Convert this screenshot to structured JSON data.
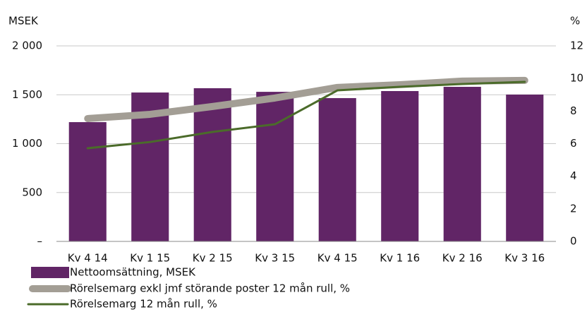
{
  "chart_data": {
    "type": "bar_line",
    "ylabel": "MSEK",
    "y2label": "%",
    "categories": [
      "Kv 4 14",
      "Kv 1 15",
      "Kv 2 15",
      "Kv 3 15",
      "Kv 4 15",
      "Kv 1 16",
      "Kv 2 16",
      "Kv 3 16"
    ],
    "series": [
      {
        "name": "Nettoomsättning, MSEK",
        "type": "bar",
        "color": "#612566",
        "values": [
          1220,
          1523,
          1567,
          1530,
          1466,
          1538,
          1581,
          1502
        ]
      },
      {
        "name": "Rörelsemarg exkl jmf störande poster 12 mån rull, %",
        "type": "line",
        "axis": "y2",
        "color": "#a39e95",
        "values": [
          7.54,
          7.8,
          8.28,
          8.8,
          9.45,
          9.62,
          9.84,
          9.88
        ]
      },
      {
        "name": "Rörelsemarg 12 mån rull, %",
        "type": "line",
        "axis": "y2",
        "color": "#4b6b2a",
        "values": [
          5.72,
          6.1,
          6.72,
          7.19,
          9.27,
          9.49,
          9.66,
          9.79
        ]
      }
    ],
    "ylim": [
      0,
      2000
    ],
    "yticks": [
      {
        "value": 0,
        "label": "–"
      },
      500,
      {
        "value": 1000,
        "label": "1 000"
      },
      {
        "value": 1500,
        "label": "1 500"
      },
      {
        "value": 2000,
        "label": "2 000"
      }
    ],
    "y2lim": [
      0,
      12
    ],
    "y2ticks": [
      0,
      2,
      4,
      6,
      8,
      10,
      12
    ],
    "grid": true
  }
}
